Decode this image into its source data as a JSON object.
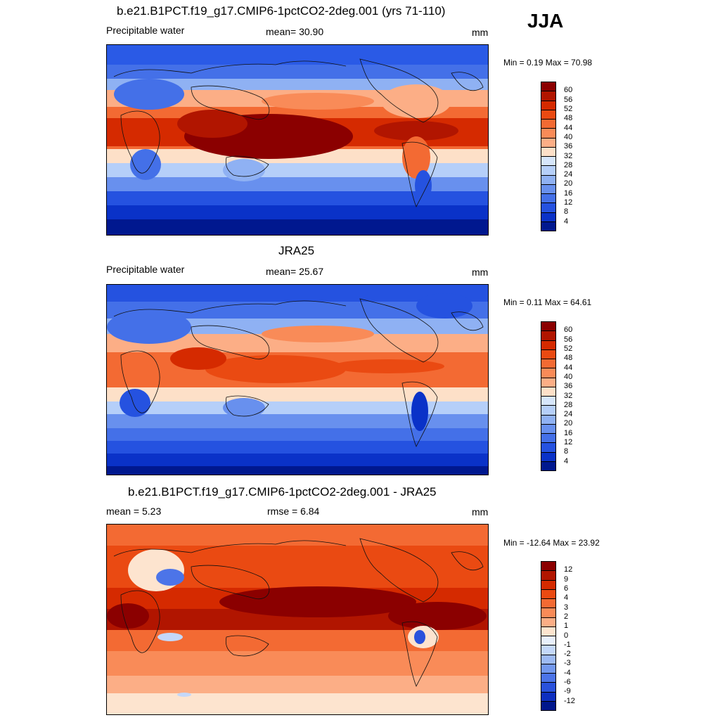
{
  "season": "JJA",
  "panels": [
    {
      "title": "b.e21.B1PCT.f19_g17.CMIP6-1pctCO2-2deg.001 (yrs 71-110)",
      "left_label": "Precipitable water",
      "center_label": "mean=  30.90",
      "units": "mm",
      "minmax": "Min =   0.19 Max =  70.98",
      "colorbar": {
        "colors": [
          "#8b0000",
          "#b11500",
          "#d52a00",
          "#ea4a12",
          "#f36a33",
          "#f98b58",
          "#fcae86",
          "#fde0c8",
          "#d6e6fb",
          "#b5cff9",
          "#8fb1f3",
          "#6890ee",
          "#4470e8",
          "#2552e0",
          "#0a32c8",
          "#00188f"
        ],
        "labels": [
          "60",
          "56",
          "52",
          "48",
          "44",
          "40",
          "36",
          "32",
          "28",
          "24",
          "20",
          "16",
          "12",
          "8",
          "4"
        ]
      }
    },
    {
      "title": "JRA25",
      "left_label": "Precipitable water",
      "center_label": "mean=  25.67",
      "units": "mm",
      "minmax": "Min =   0.11 Max =  64.61",
      "colorbar": {
        "colors": [
          "#8b0000",
          "#b11500",
          "#d52a00",
          "#ea4a12",
          "#f36a33",
          "#f98b58",
          "#fcae86",
          "#fde0c8",
          "#d6e6fb",
          "#b5cff9",
          "#8fb1f3",
          "#6890ee",
          "#4470e8",
          "#2552e0",
          "#0a32c8",
          "#00188f"
        ],
        "labels": [
          "60",
          "56",
          "52",
          "48",
          "44",
          "40",
          "36",
          "32",
          "28",
          "24",
          "20",
          "16",
          "12",
          "8",
          "4"
        ]
      }
    },
    {
      "title": "b.e21.B1PCT.f19_g17.CMIP6-1pctCO2-2deg.001 - JRA25",
      "left_label": "mean =   5.23",
      "center_label": "rmse =   6.84",
      "units": "mm",
      "minmax": "Min = -12.64 Max =  23.92",
      "colorbar": {
        "colors": [
          "#8b0000",
          "#b11500",
          "#d52a00",
          "#ea4a12",
          "#f36a33",
          "#f98b58",
          "#fcae86",
          "#fde4cf",
          "#e8f0fc",
          "#c4d8fa",
          "#9dbaf4",
          "#7398ee",
          "#4c74e8",
          "#2a52dc",
          "#0e2fc0",
          "#00168c"
        ],
        "labels": [
          "12",
          "9",
          "6",
          "4",
          "3",
          "2",
          "1",
          "0",
          "-1",
          "-2",
          "-3",
          "-4",
          "-6",
          "-9",
          "-12"
        ]
      }
    }
  ]
}
